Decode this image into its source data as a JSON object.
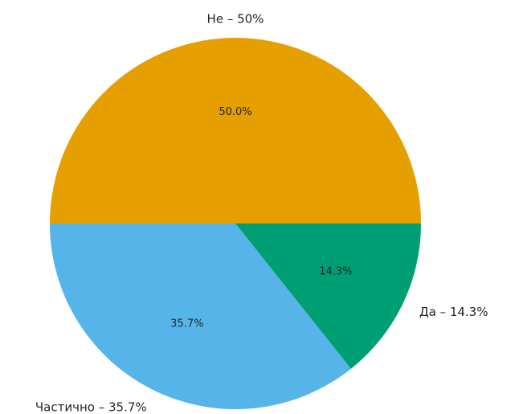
{
  "chart_data": {
    "type": "pie",
    "categories": [
      "Не – 50%",
      "Частично – 35.7%",
      "Да – 14.3%"
    ],
    "values": [
      50,
      35.7,
      14.3
    ],
    "value_labels": [
      "50.0%",
      "35.7%",
      "14.3%"
    ],
    "colors": [
      "#E69F00",
      "#56B4E9",
      "#009E73"
    ],
    "start_angle": 0,
    "counterclock": true
  }
}
